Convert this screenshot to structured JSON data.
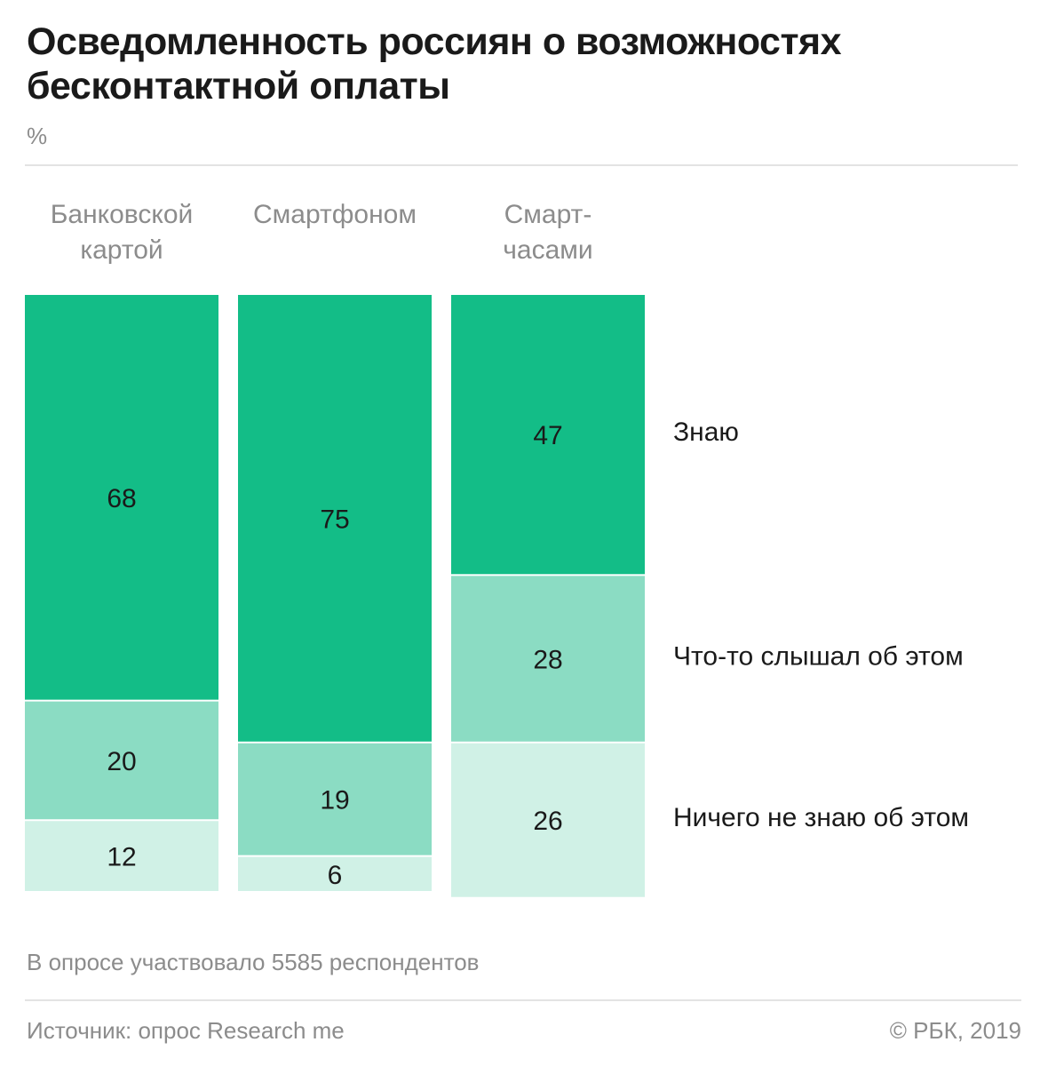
{
  "title": "Осведомленность россиян о возможностях бесконтактной оплаты",
  "unit": "%",
  "note": "В опросе участвовало 5585 респондентов",
  "source": "Источник: опрос Research me",
  "copyright": "© РБК, 2019",
  "colors": {
    "know": "#13bd87",
    "heard": "#8bdcc3",
    "dont_know": "#d0f1e6"
  },
  "chart_data": {
    "type": "bar",
    "stacked": true,
    "normalized": true,
    "categories": [
      "Банковской картой",
      "Смартфоном",
      "Смарт-часами"
    ],
    "category_labels": [
      [
        "Банковской",
        "картой"
      ],
      [
        "Смартфоном"
      ],
      [
        "Смарт-",
        "часами"
      ]
    ],
    "series": [
      {
        "name": "Знаю",
        "values": [
          68,
          75,
          47
        ]
      },
      {
        "name": "Что-то слышал об этом",
        "values": [
          20,
          19,
          28
        ]
      },
      {
        "name": "Ничего не знаю об этом",
        "values": [
          12,
          6,
          26
        ]
      }
    ],
    "ylim": [
      0,
      100
    ],
    "legend": "right",
    "grid": false
  }
}
